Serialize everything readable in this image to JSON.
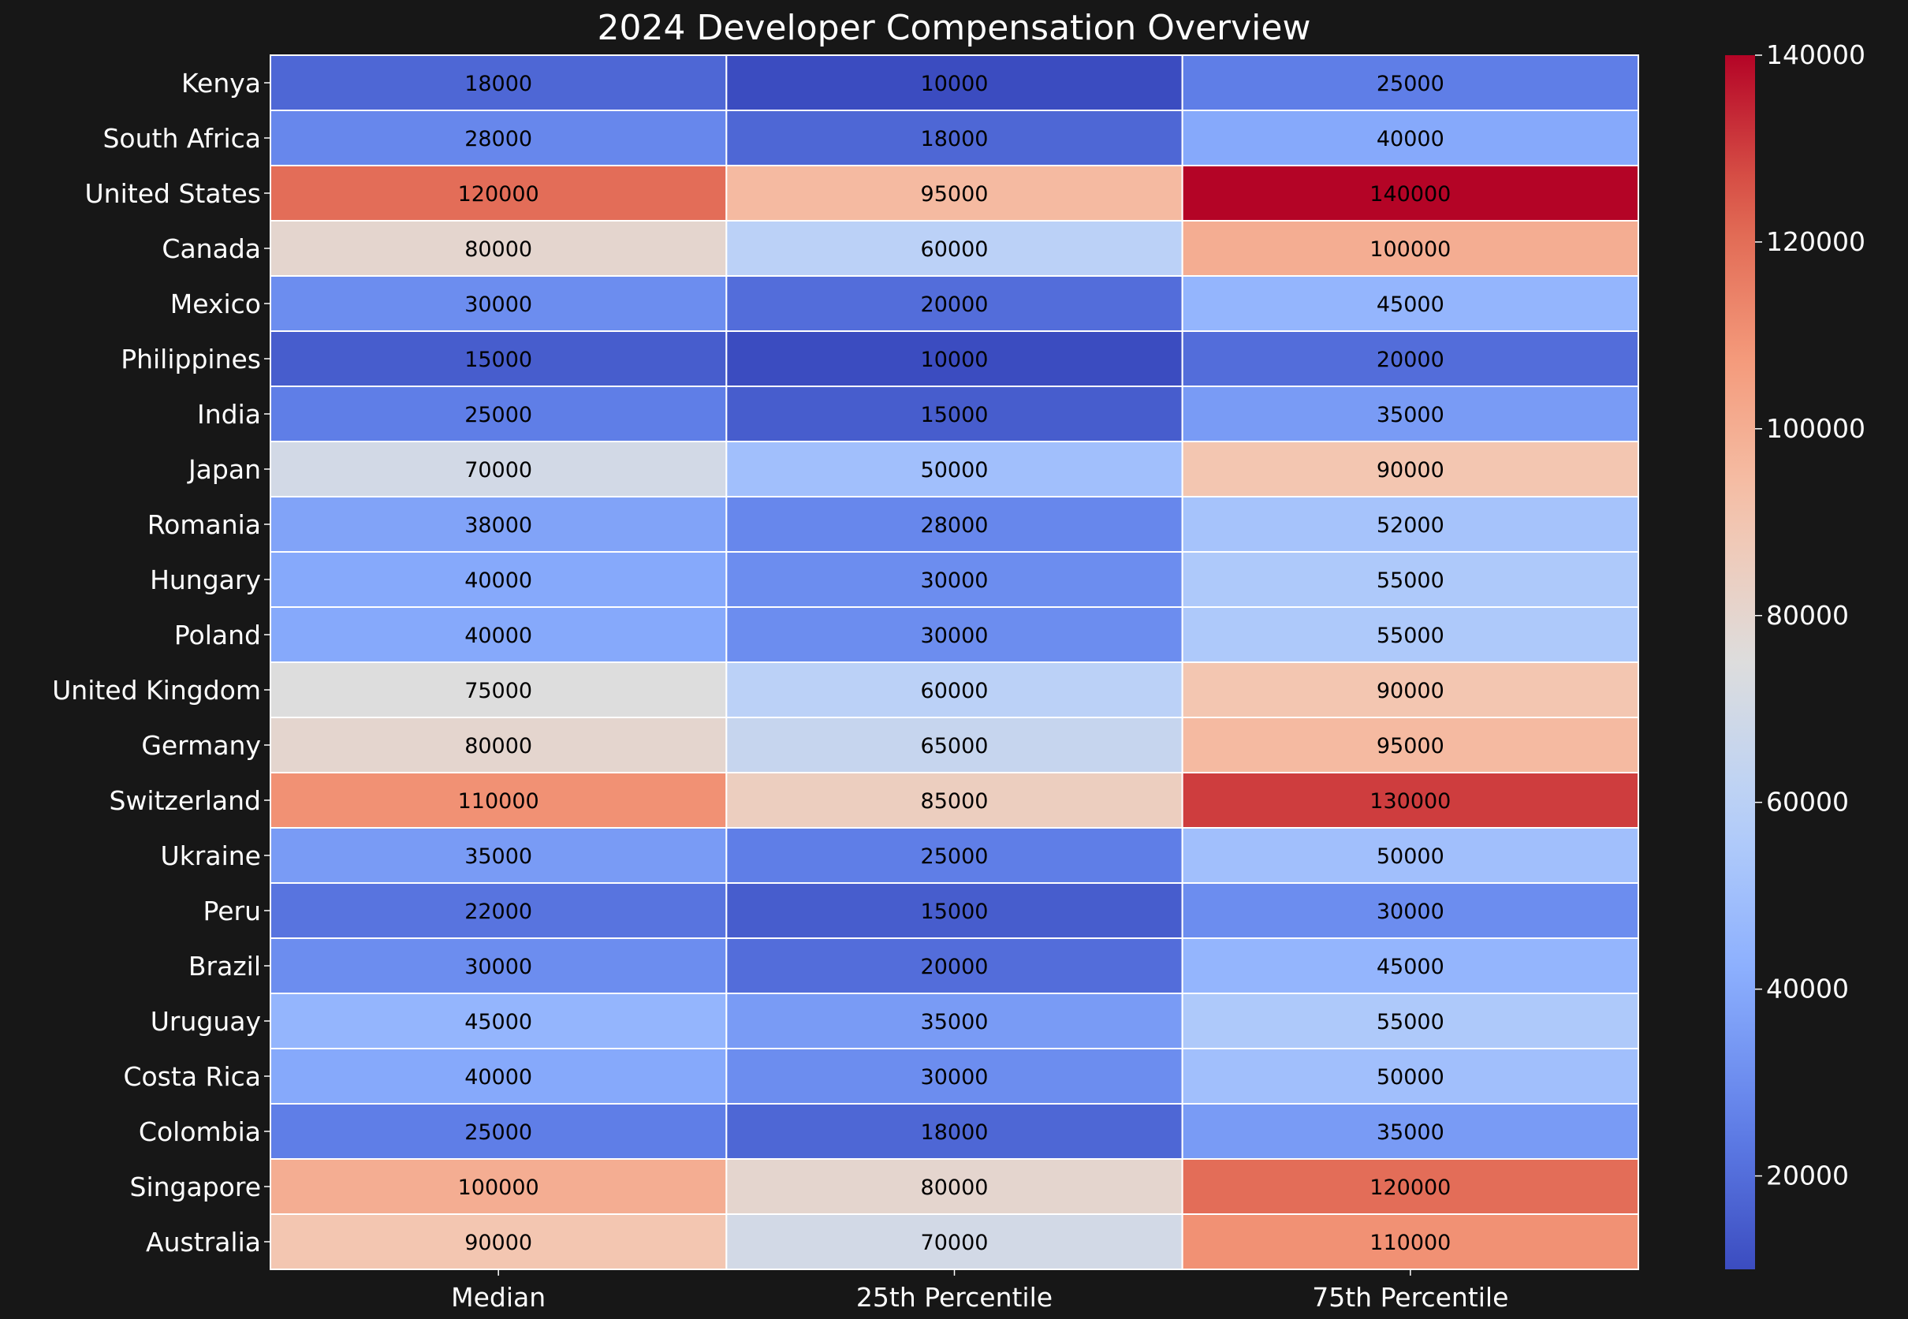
{
  "chart_data": {
    "type": "heatmap",
    "title": "2024 Developer Compensation Overview",
    "xlabel": "",
    "ylabel": "",
    "columns": [
      "Median",
      "25th Percentile",
      "75th Percentile"
    ],
    "rows": [
      "Kenya",
      "South Africa",
      "United States",
      "Canada",
      "Mexico",
      "Philippines",
      "India",
      "Japan",
      "Romania",
      "Hungary",
      "Poland",
      "United Kingdom",
      "Germany",
      "Switzerland",
      "Ukraine",
      "Peru",
      "Brazil",
      "Uruguay",
      "Costa Rica",
      "Colombia",
      "Singapore",
      "Australia"
    ],
    "values": [
      [
        18000,
        10000,
        25000
      ],
      [
        28000,
        18000,
        40000
      ],
      [
        120000,
        95000,
        140000
      ],
      [
        80000,
        60000,
        100000
      ],
      [
        30000,
        20000,
        45000
      ],
      [
        15000,
        10000,
        20000
      ],
      [
        25000,
        15000,
        35000
      ],
      [
        70000,
        50000,
        90000
      ],
      [
        38000,
        28000,
        52000
      ],
      [
        40000,
        30000,
        55000
      ],
      [
        40000,
        30000,
        55000
      ],
      [
        75000,
        60000,
        90000
      ],
      [
        80000,
        65000,
        95000
      ],
      [
        110000,
        85000,
        130000
      ],
      [
        35000,
        25000,
        50000
      ],
      [
        22000,
        15000,
        30000
      ],
      [
        30000,
        20000,
        45000
      ],
      [
        45000,
        35000,
        55000
      ],
      [
        40000,
        30000,
        50000
      ],
      [
        25000,
        18000,
        35000
      ],
      [
        100000,
        80000,
        120000
      ],
      [
        90000,
        70000,
        110000
      ]
    ],
    "colormap": "coolwarm",
    "vmin": 10000,
    "vmax": 140000,
    "colorbar": {
      "ticks": [
        20000,
        40000,
        60000,
        80000,
        100000,
        120000,
        140000
      ],
      "tick_labels": [
        "20000",
        "40000",
        "60000",
        "80000",
        "100000",
        "120000",
        "140000"
      ],
      "placement": "right"
    },
    "cell_annotations": true,
    "grid": false,
    "colors": {
      "background": "#171717",
      "text": "#ffffff",
      "annotation_text": "#000000",
      "cell_border": "#ffffff"
    }
  }
}
